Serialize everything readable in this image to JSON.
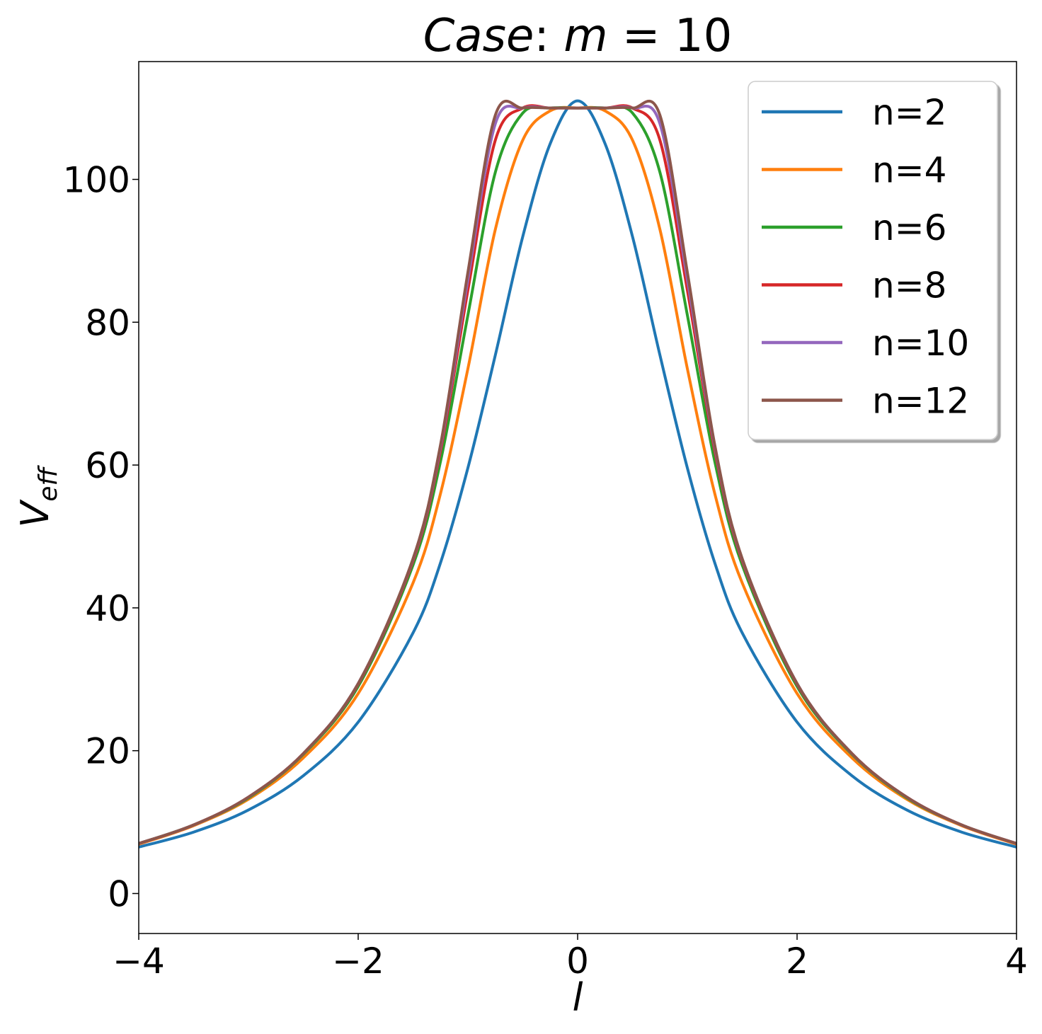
{
  "chart_data": {
    "type": "line",
    "title": "Case: m = 10",
    "title_parts": [
      "Case",
      ": ",
      "m",
      " = ",
      "10"
    ],
    "xlabel": "l",
    "ylabel_main": "V",
    "ylabel_sub": "eff",
    "xlim": [
      -4,
      4
    ],
    "ylim": [
      -5.6,
      116.5
    ],
    "xticks": [
      -4,
      -2,
      0,
      2,
      4
    ],
    "xtick_labels": [
      "−4",
      "−2",
      "0",
      "2",
      "4"
    ],
    "yticks": [
      0,
      20,
      40,
      60,
      80,
      100
    ],
    "ytick_labels": [
      "0",
      "20",
      "40",
      "60",
      "80",
      "100"
    ],
    "grid": false,
    "legend_position": "top-right",
    "x": [
      -4.0,
      -3.5,
      -3.0,
      -2.5,
      -2.0,
      -1.5,
      -1.25,
      -1.0,
      -0.75,
      -0.5,
      -0.25,
      0.0,
      0.25,
      0.5,
      0.75,
      1.0,
      1.25,
      1.5,
      2.0,
      2.5,
      3.0,
      3.5,
      4.0
    ],
    "series": [
      {
        "name": "n=2",
        "color": "#1f77b4",
        "values": [
          6.5,
          8.6,
          11.7,
          16.5,
          24.0,
          36.5,
          46.3,
          59.6,
          75.4,
          92.0,
          105.0,
          111.0,
          105.0,
          92.0,
          75.4,
          59.6,
          46.3,
          36.5,
          24.0,
          16.5,
          11.7,
          8.6,
          6.5
        ]
      },
      {
        "name": "n=4",
        "color": "#ff7f0e",
        "values": [
          6.9,
          9.5,
          13.2,
          19.0,
          28.0,
          43.5,
          56.0,
          73.5,
          93.0,
          105.5,
          109.6,
          110.0,
          109.6,
          105.5,
          93.0,
          73.5,
          56.0,
          43.5,
          28.0,
          19.0,
          13.2,
          9.5,
          6.9
        ]
      },
      {
        "name": "n=6",
        "color": "#2ca02c",
        "values": [
          7.0,
          9.6,
          13.4,
          19.5,
          29.0,
          46.0,
          60.5,
          81.0,
          101.0,
          109.3,
          110.0,
          110.0,
          110.0,
          109.3,
          101.0,
          81.0,
          60.5,
          46.0,
          29.0,
          19.5,
          13.4,
          9.6,
          7.0
        ]
      },
      {
        "name": "n=8",
        "color": "#d62728",
        "values": [
          7.0,
          9.6,
          13.5,
          19.6,
          29.3,
          46.6,
          62.0,
          84.5,
          105.5,
          110.0,
          110.0,
          110.0,
          110.0,
          110.0,
          105.5,
          84.5,
          62.0,
          46.6,
          29.3,
          19.6,
          13.5,
          9.6,
          7.0
        ]
      },
      {
        "name": "n=10",
        "color": "#9467bd",
        "values": [
          7.0,
          9.6,
          13.5,
          19.6,
          29.4,
          46.8,
          62.5,
          86.0,
          107.8,
          110.0,
          110.0,
          110.0,
          110.0,
          110.0,
          107.8,
          86.0,
          62.5,
          46.8,
          29.4,
          19.6,
          13.5,
          9.6,
          7.0
        ]
      },
      {
        "name": "n=12",
        "color": "#8c564b",
        "values": [
          7.0,
          9.6,
          13.5,
          19.6,
          29.4,
          46.9,
          62.8,
          87.0,
          109.0,
          110.0,
          110.0,
          110.0,
          110.0,
          110.0,
          109.0,
          87.0,
          62.8,
          46.9,
          29.4,
          19.6,
          13.5,
          9.6,
          7.0
        ]
      }
    ]
  }
}
